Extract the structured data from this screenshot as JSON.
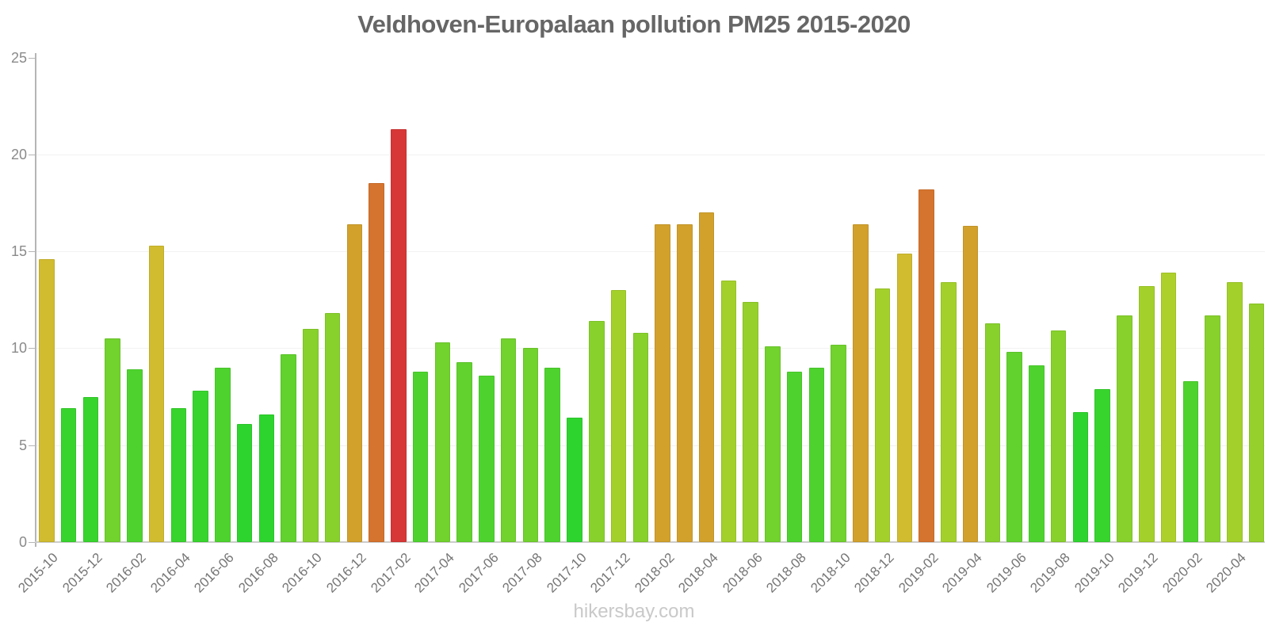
{
  "chart_data": {
    "type": "bar",
    "title": "Veldhoven-Europalaan pollution PM25 2015-2020",
    "xlabel": "",
    "ylabel": "",
    "ylim": [
      0,
      25
    ],
    "yticks": [
      0,
      5,
      10,
      15,
      20,
      25
    ],
    "grid": "horizontal-faint",
    "legend": "none",
    "x_label_every": 2,
    "x": [
      "2015-10",
      "2015-11",
      "2015-12",
      "2016-01",
      "2016-02",
      "2016-03",
      "2016-04",
      "2016-05",
      "2016-06",
      "2016-07",
      "2016-08",
      "2016-09",
      "2016-10",
      "2016-11",
      "2016-12",
      "2017-01",
      "2017-02",
      "2017-03",
      "2017-04",
      "2017-05",
      "2017-06",
      "2017-07",
      "2017-08",
      "2017-09",
      "2017-10",
      "2017-11",
      "2017-12",
      "2018-01",
      "2018-02",
      "2018-03",
      "2018-04",
      "2018-05",
      "2018-06",
      "2018-07",
      "2018-08",
      "2018-09",
      "2018-10",
      "2018-11",
      "2018-12",
      "2019-01",
      "2019-02",
      "2019-03",
      "2019-04",
      "2019-05",
      "2019-06",
      "2019-07",
      "2019-08",
      "2019-09",
      "2019-10",
      "2019-11",
      "2019-12",
      "2020-01",
      "2020-02",
      "2020-03",
      "2020-04",
      "2020-05"
    ],
    "values": [
      14.6,
      6.9,
      7.5,
      10.5,
      8.9,
      15.3,
      6.9,
      7.8,
      9.0,
      6.1,
      6.6,
      9.7,
      11.0,
      11.8,
      16.4,
      18.5,
      21.3,
      8.8,
      10.3,
      9.3,
      8.6,
      10.5,
      10.0,
      9.0,
      6.4,
      11.4,
      13.0,
      10.8,
      16.4,
      16.4,
      17.0,
      13.5,
      12.4,
      10.1,
      8.8,
      9.0,
      10.2,
      16.4,
      13.1,
      14.9,
      18.2,
      13.4,
      16.3,
      11.3,
      9.8,
      9.1,
      10.9,
      6.7,
      7.9,
      11.7,
      13.2,
      13.9,
      8.3,
      11.7,
      13.4,
      12.3
    ],
    "colors": [
      "#d1bc30",
      "#38d42e",
      "#38d42e",
      "#72d22e",
      "#4ed32e",
      "#d1bc30",
      "#38d42e",
      "#38d42e",
      "#4ed32e",
      "#2ed42e",
      "#2ed42e",
      "#62d22e",
      "#88d12d",
      "#88d12d",
      "#d2a12c",
      "#d5742e",
      "#d73737",
      "#4ed32e",
      "#72d22e",
      "#62d22e",
      "#4ed32e",
      "#72d22e",
      "#72d22e",
      "#4ed32e",
      "#2ed42e",
      "#88d12d",
      "#a4d02b",
      "#88d12d",
      "#d2a12c",
      "#d2a12c",
      "#d2a12c",
      "#a4d02b",
      "#95d02c",
      "#72d22e",
      "#4ed32e",
      "#4ed32e",
      "#72d22e",
      "#d2a12c",
      "#a4d02b",
      "#d1bc30",
      "#d5742e",
      "#a4d02b",
      "#d2a12c",
      "#88d12d",
      "#62d22e",
      "#4ed32e",
      "#88d12d",
      "#2ed42e",
      "#38d42e",
      "#88d12d",
      "#a4d02b",
      "#aed02b",
      "#4ed32e",
      "#88d12d",
      "#a4d02b",
      "#95d02c"
    ]
  },
  "footer": {
    "text": "hikersbay.com"
  },
  "palette": {
    "low": "#2ed42e",
    "mid": "#88d12d",
    "high": "#d1bc30",
    "very_high": "#d2a12c",
    "alert": "#d5742e",
    "max": "#d73737",
    "axis": "#b5b5b5",
    "grid": "#f2f2f2",
    "baseline": "#cccccc",
    "title_text": "#666666",
    "tick_text": "#757575",
    "footer_text": "#c9c9c9"
  }
}
